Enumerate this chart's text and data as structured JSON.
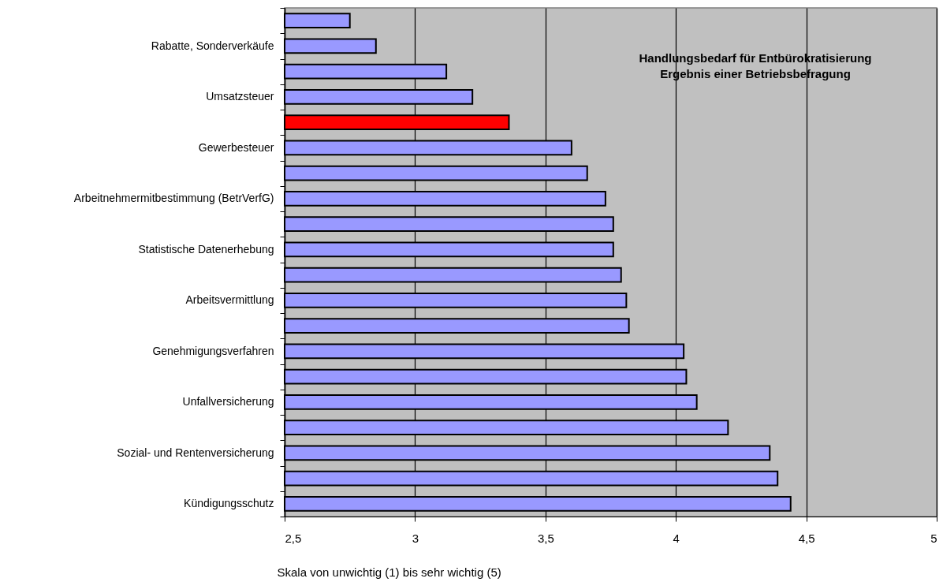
{
  "chart_data": {
    "type": "bar",
    "orientation": "horizontal",
    "title": "Handlungsbedarf für Entbürokratisierung",
    "subtitle": "Ergebnis einer Betriebsbefragung",
    "xlabel": "Skala von unwichtig (1) bis sehr wichtig (5)",
    "categories": [
      null,
      "Rabatte, Sonderverkäufe",
      null,
      "Umsatzsteuer",
      null,
      "Gewerbesteuer",
      null,
      "Arbeitnehmermitbestimmung (BetrVerfG)",
      null,
      "Statistische Datenerhebung",
      null,
      "Arbeitsvermittlung",
      null,
      "Genehmigungsverfahren",
      null,
      "Unfallversicherung",
      null,
      "Sozial- und Rentenversicherung",
      null,
      "Kündigungsschutz"
    ],
    "values": [
      2.75,
      2.85,
      3.12,
      3.22,
      3.36,
      3.6,
      3.66,
      3.73,
      3.76,
      3.76,
      3.79,
      3.81,
      3.82,
      4.03,
      4.04,
      4.08,
      4.2,
      4.36,
      4.39,
      4.44
    ],
    "colors": [
      "#9999ff",
      "#9999ff",
      "#9999ff",
      "#9999ff",
      "#ff0000",
      "#9999ff",
      "#9999ff",
      "#9999ff",
      "#9999ff",
      "#9999ff",
      "#9999ff",
      "#9999ff",
      "#9999ff",
      "#9999ff",
      "#9999ff",
      "#9999ff",
      "#9999ff",
      "#9999ff",
      "#9999ff",
      "#9999ff"
    ],
    "xlim": [
      2.5,
      5
    ],
    "xticks": [
      {
        "value": 2.5,
        "label": "2,5"
      },
      3,
      {
        "value": 3.5,
        "label": "3,5"
      },
      4,
      {
        "value": 4.5,
        "label": "4,5"
      },
      5
    ],
    "grid": "x"
  }
}
